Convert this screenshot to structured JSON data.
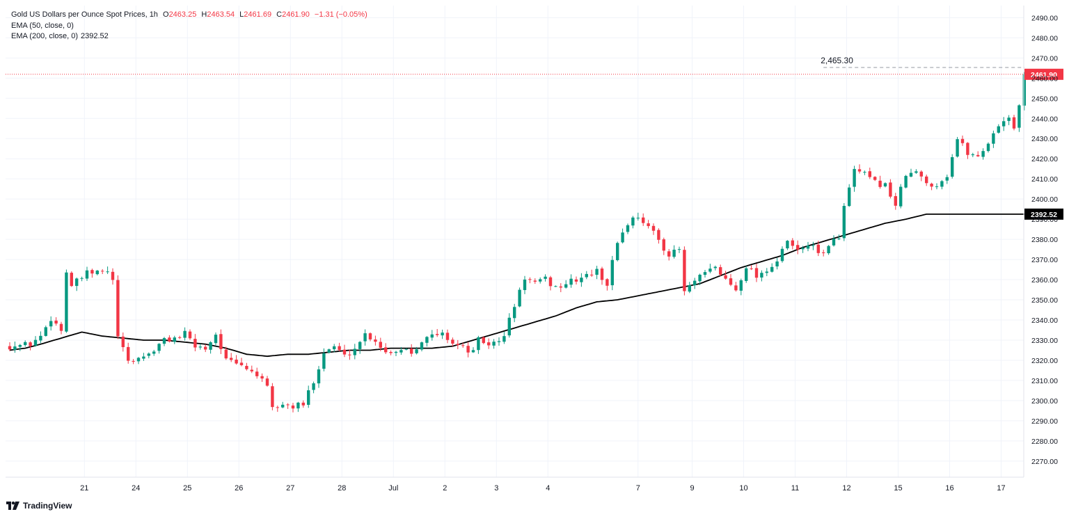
{
  "header": {
    "symbol": "Gold US Dollars per Ounce Spot Prices, 1h",
    "o_label": "O",
    "o_value": "2463.25",
    "h_label": "H",
    "h_value": "2463.54",
    "l_label": "L",
    "l_value": "2461.69",
    "c_label": "C",
    "c_value": "2461.90",
    "change": "−1.31 (−0.05%)",
    "ema50_label": "EMA (50, close, 0)",
    "ema200_label": "EMA (200, close, 0)",
    "ema200_value": "2392.52"
  },
  "branding": {
    "logo_text": "TradingView",
    "logo_icon": "tradingview-logo-icon"
  },
  "colors": {
    "up": "#089981",
    "down": "#f23645",
    "ema200": "#000000",
    "grid": "#f0f3fa",
    "text": "#131722"
  },
  "chart_data": {
    "type": "candlestick",
    "title": "Gold US Dollars per Ounce Spot Prices",
    "interval": "1h",
    "ylim": [
      2262,
      2496
    ],
    "y_ticks": [
      2270,
      2280,
      2290,
      2300,
      2310,
      2320,
      2330,
      2340,
      2350,
      2360,
      2370,
      2380,
      2390,
      2400,
      2410,
      2420,
      2430,
      2440,
      2450,
      2460,
      2470,
      2480,
      2490
    ],
    "y_tick_labels": [
      "2270.00",
      "2280.00",
      "2290.00",
      "2300.00",
      "2310.00",
      "2320.00",
      "2330.00",
      "2340.00",
      "2350.00",
      "2360.00",
      "2370.00",
      "2380.00",
      "2390.00",
      "2400.00",
      "2410.00",
      "2420.00",
      "2430.00",
      "2440.00",
      "2450.00",
      "2460.00",
      "2470.00",
      "2480.00",
      "2490.00"
    ],
    "x_tick_labels": [
      {
        "label": "21",
        "bar": 14.5
      },
      {
        "label": "24",
        "bar": 24.5
      },
      {
        "label": "25",
        "bar": 34.5
      },
      {
        "label": "26",
        "bar": 44.5
      },
      {
        "label": "27",
        "bar": 54.5
      },
      {
        "label": "28",
        "bar": 64.5
      },
      {
        "label": "Jul",
        "bar": 74.5
      },
      {
        "label": "2",
        "bar": 84.5
      },
      {
        "label": "3",
        "bar": 94.5
      },
      {
        "label": "4",
        "bar": 104.5
      },
      {
        "label": "7",
        "bar": 122
      },
      {
        "label": "9",
        "bar": 132.5
      },
      {
        "label": "10",
        "bar": 142.5
      },
      {
        "label": "11",
        "bar": 152.5
      },
      {
        "label": "12",
        "bar": 162.5
      },
      {
        "label": "15",
        "bar": 172.5
      },
      {
        "label": "16",
        "bar": 182.5
      },
      {
        "label": "17",
        "bar": 192.5
      }
    ],
    "candle_close_path": [
      [
        0,
        2327
      ],
      [
        4,
        2328
      ],
      [
        6,
        2332
      ],
      [
        8,
        2341
      ],
      [
        10,
        2335
      ],
      [
        11,
        2364
      ],
      [
        12,
        2357
      ],
      [
        15,
        2363
      ],
      [
        19,
        2364
      ],
      [
        20,
        2359
      ],
      [
        21,
        2332
      ],
      [
        22,
        2325
      ],
      [
        23,
        2319
      ],
      [
        26,
        2322
      ],
      [
        28,
        2325
      ],
      [
        30,
        2330
      ],
      [
        32,
        2331
      ],
      [
        34,
        2333
      ],
      [
        36,
        2327
      ],
      [
        38,
        2326
      ],
      [
        40,
        2333
      ],
      [
        42,
        2320
      ],
      [
        44,
        2318
      ],
      [
        46,
        2316
      ],
      [
        48,
        2313
      ],
      [
        50,
        2306
      ],
      [
        51,
        2296
      ],
      [
        53,
        2298
      ],
      [
        55,
        2297
      ],
      [
        57,
        2298
      ],
      [
        59,
        2310
      ],
      [
        61,
        2324
      ],
      [
        63,
        2327
      ],
      [
        65,
        2322
      ],
      [
        67,
        2326
      ],
      [
        69,
        2333
      ],
      [
        71,
        2330
      ],
      [
        73,
        2324
      ],
      [
        75,
        2325
      ],
      [
        77,
        2326
      ],
      [
        78,
        2324
      ],
      [
        80,
        2330
      ],
      [
        82,
        2332
      ],
      [
        84,
        2333
      ],
      [
        86,
        2329
      ],
      [
        88,
        2326
      ],
      [
        90,
        2324
      ],
      [
        91,
        2330
      ],
      [
        93,
        2328
      ],
      [
        95,
        2329
      ],
      [
        96,
        2333
      ],
      [
        98,
        2347
      ],
      [
        100,
        2361
      ],
      [
        102,
        2358
      ],
      [
        104,
        2360
      ],
      [
        106,
        2356
      ],
      [
        108,
        2358
      ],
      [
        110,
        2360
      ],
      [
        112,
        2362
      ],
      [
        114,
        2364
      ],
      [
        116,
        2358
      ],
      [
        118,
        2379
      ],
      [
        120,
        2388
      ],
      [
        122,
        2392
      ],
      [
        124,
        2386
      ],
      [
        126,
        2380
      ],
      [
        128,
        2372
      ],
      [
        130,
        2375
      ],
      [
        131,
        2354
      ],
      [
        133,
        2359
      ],
      [
        135,
        2363
      ],
      [
        137,
        2366
      ],
      [
        139,
        2360
      ],
      [
        141,
        2355
      ],
      [
        143,
        2367
      ],
      [
        145,
        2362
      ],
      [
        147,
        2365
      ],
      [
        149,
        2369
      ],
      [
        151,
        2379
      ],
      [
        153,
        2374
      ],
      [
        155,
        2378
      ],
      [
        157,
        2373
      ],
      [
        159,
        2376
      ],
      [
        161,
        2382
      ],
      [
        162,
        2396
      ],
      [
        164,
        2414
      ],
      [
        166,
        2412
      ],
      [
        168,
        2408
      ],
      [
        170,
        2407
      ],
      [
        172,
        2397
      ],
      [
        174,
        2412
      ],
      [
        176,
        2413
      ],
      [
        178,
        2408
      ],
      [
        180,
        2407
      ],
      [
        182,
        2412
      ],
      [
        184,
        2430
      ],
      [
        186,
        2423
      ],
      [
        188,
        2421
      ],
      [
        190,
        2428
      ],
      [
        192,
        2437
      ],
      [
        194,
        2441
      ],
      [
        195,
        2434
      ],
      [
        196,
        2446
      ],
      [
        197,
        2462
      ]
    ],
    "ema200_path": [
      [
        0,
        2325
      ],
      [
        3,
        2326
      ],
      [
        6,
        2328
      ],
      [
        10,
        2331
      ],
      [
        14,
        2334
      ],
      [
        18,
        2332
      ],
      [
        22,
        2331
      ],
      [
        26,
        2330
      ],
      [
        30,
        2330
      ],
      [
        34,
        2329
      ],
      [
        38,
        2328
      ],
      [
        42,
        2326
      ],
      [
        46,
        2323
      ],
      [
        50,
        2322
      ],
      [
        54,
        2323
      ],
      [
        58,
        2323
      ],
      [
        62,
        2324
      ],
      [
        66,
        2325
      ],
      [
        70,
        2325
      ],
      [
        74,
        2326
      ],
      [
        78,
        2326
      ],
      [
        82,
        2326
      ],
      [
        86,
        2327
      ],
      [
        90,
        2330
      ],
      [
        94,
        2333
      ],
      [
        98,
        2336
      ],
      [
        102,
        2339
      ],
      [
        106,
        2342
      ],
      [
        110,
        2346
      ],
      [
        114,
        2349
      ],
      [
        118,
        2350
      ],
      [
        122,
        2352
      ],
      [
        126,
        2354
      ],
      [
        130,
        2356
      ],
      [
        134,
        2358
      ],
      [
        138,
        2362
      ],
      [
        142,
        2366
      ],
      [
        146,
        2369
      ],
      [
        150,
        2372
      ],
      [
        154,
        2376
      ],
      [
        158,
        2379
      ],
      [
        162,
        2382
      ],
      [
        166,
        2385
      ],
      [
        170,
        2388
      ],
      [
        174,
        2390
      ],
      [
        178,
        2392.5
      ]
    ],
    "candles_from_bar": 0,
    "ema200_from_bar": 0,
    "ema200_to_bar": 197,
    "ema200_last_bar": 197,
    "last_price": 2461.9,
    "last_price_label": "2461.90",
    "ema200_last": 2392.52,
    "ema200_last_label": "2392.52",
    "high_marker": 2465.3,
    "high_marker_label": "2,465.30",
    "high_marker_bars": [
      158,
      197
    ]
  }
}
